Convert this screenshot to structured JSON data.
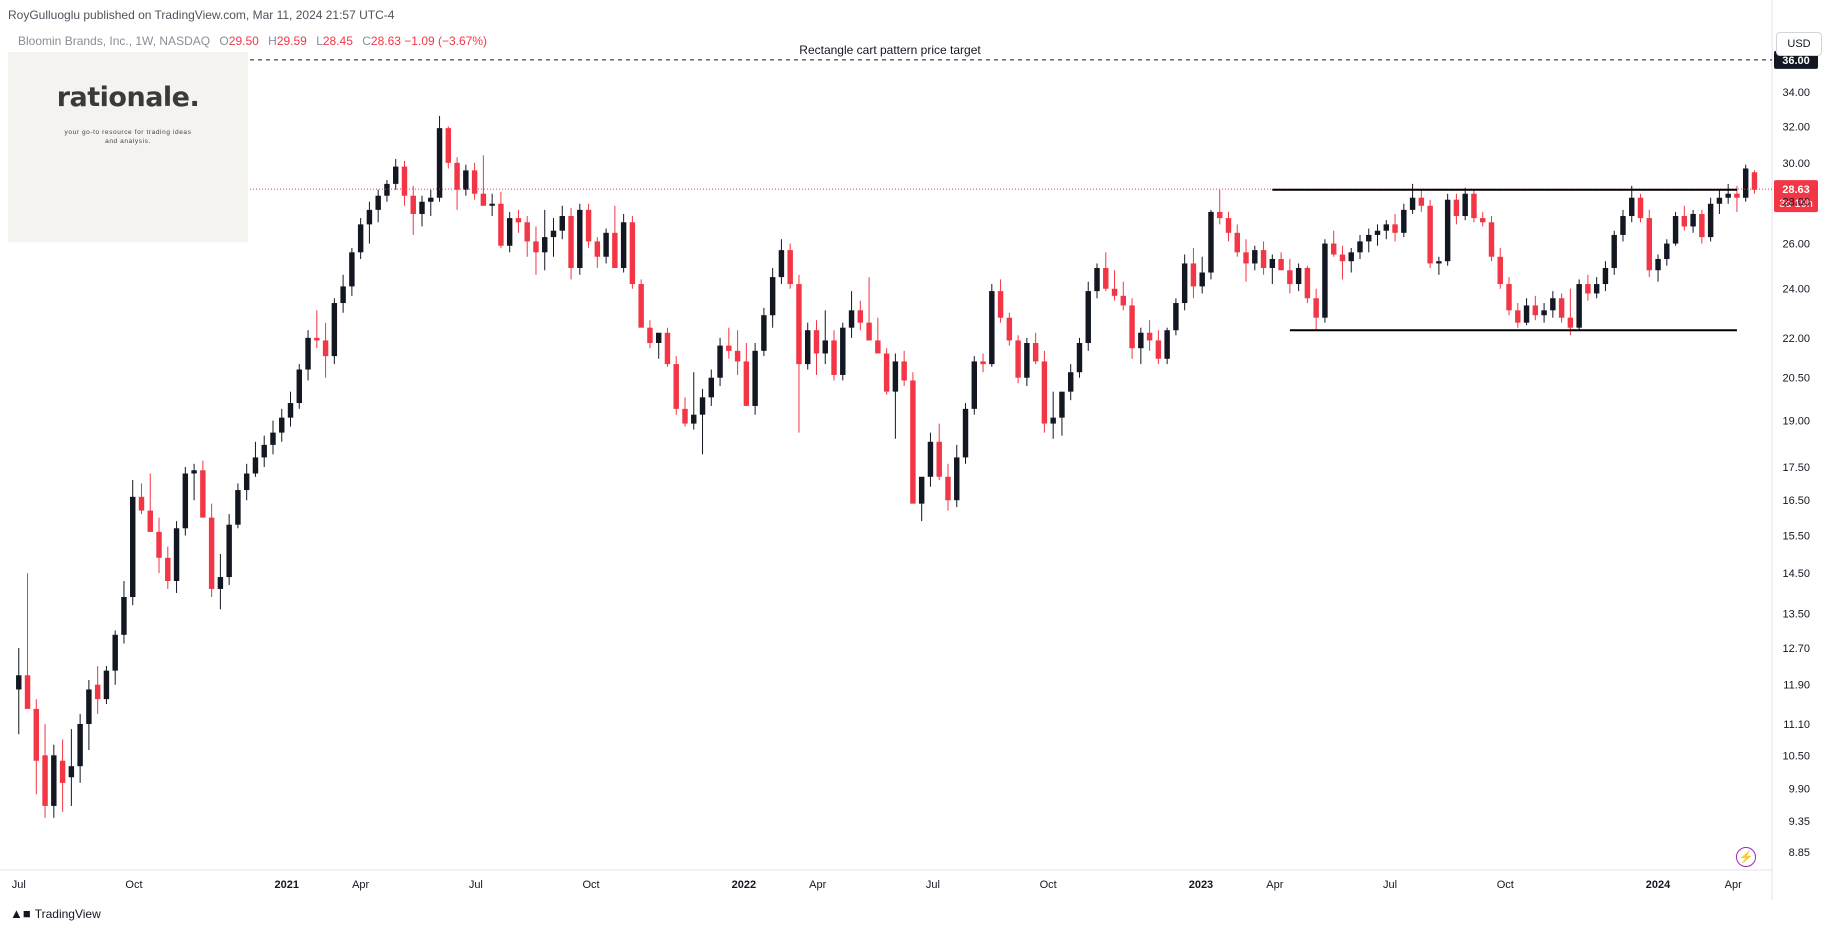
{
  "header": {
    "publisher": "RoyGulluoglu published on TradingView.com, Mar 11, 2024 21:57 UTC-4",
    "symbol": "Bloomin Brands, Inc., 1W, NASDAQ",
    "ohlc": {
      "open_label": "O",
      "open": "29.50",
      "high_label": "H",
      "high": "29.59",
      "low_label": "L",
      "low": "28.45",
      "close_label": "C",
      "close": "28.63",
      "change": "−1.09 (−3.67%)"
    }
  },
  "logo": {
    "name": "rationale.",
    "tagline": "your go-to resource for trading ideas and analysis."
  },
  "currency": "USD",
  "footer": {
    "brand": "TradingView"
  },
  "icons": {
    "footer_logo": "tradingview-logo-icon",
    "bolt": "lightning-icon"
  },
  "colors": {
    "up": "#131722",
    "down": "#f23645",
    "price_line": "#f23645",
    "target_line": "#131722"
  },
  "chart_data": {
    "type": "candlestick",
    "title": "Bloomin Brands, Inc., 1W, NASDAQ",
    "y_scale": "log",
    "ylim": [
      8.6,
      38.5
    ],
    "y_ticks": [
      "8.85",
      "9.35",
      "9.90",
      "10.50",
      "11.10",
      "11.90",
      "12.70",
      "13.50",
      "14.50",
      "15.50",
      "16.50",
      "17.50",
      "19.00",
      "20.50",
      "22.00",
      "24.00",
      "26.00",
      "28.00",
      "30.00",
      "32.00",
      "34.00"
    ],
    "x_ticks": [
      "Jul",
      "Oct",
      "2021",
      "Apr",
      "Jul",
      "Oct",
      "2022",
      "Apr",
      "Jul",
      "Oct",
      "2023",
      "Apr",
      "Jul",
      "Oct",
      "2024",
      "Apr"
    ],
    "x_range": [
      "2020-05-25",
      "2024-04-01"
    ],
    "last_price": {
      "value": 28.63,
      "label": "28.63",
      "countdown": "3d 19h"
    },
    "target": {
      "value": 36.0,
      "label": "36.00",
      "annotation": "Rectangle cart pattern price target"
    },
    "rectangle": {
      "resistance": 28.6,
      "support": 22.3,
      "resistance_start": "2023-02-27",
      "support_start": "2023-03-13",
      "end": "2024-03-04"
    },
    "candles_start_date": "2020-06-01",
    "candles_ohlc": [
      [
        11.8,
        12.7,
        10.9,
        12.1
      ],
      [
        12.1,
        14.5,
        11.6,
        11.4
      ],
      [
        11.4,
        11.6,
        9.8,
        10.4
      ],
      [
        10.5,
        11.1,
        9.4,
        9.6
      ],
      [
        9.6,
        10.7,
        9.4,
        10.5
      ],
      [
        10.4,
        10.8,
        9.5,
        10.0
      ],
      [
        10.1,
        11.0,
        9.6,
        10.3
      ],
      [
        10.3,
        11.3,
        10.0,
        11.1
      ],
      [
        11.1,
        12.0,
        10.6,
        11.8
      ],
      [
        11.9,
        12.3,
        11.3,
        11.6
      ],
      [
        11.6,
        12.3,
        11.5,
        12.2
      ],
      [
        12.2,
        13.1,
        11.9,
        13.0
      ],
      [
        13.0,
        14.3,
        12.8,
        13.9
      ],
      [
        13.9,
        17.1,
        13.7,
        16.6
      ],
      [
        16.6,
        17.0,
        16.1,
        16.2
      ],
      [
        16.2,
        17.3,
        15.8,
        15.6
      ],
      [
        15.6,
        16.0,
        14.5,
        14.9
      ],
      [
        14.9,
        15.2,
        14.1,
        14.3
      ],
      [
        14.3,
        15.9,
        14.0,
        15.7
      ],
      [
        15.7,
        17.5,
        15.5,
        17.3
      ],
      [
        17.3,
        17.6,
        16.5,
        17.4
      ],
      [
        17.4,
        17.7,
        16.2,
        16.0
      ],
      [
        16.0,
        16.4,
        13.9,
        14.1
      ],
      [
        14.1,
        15.0,
        13.6,
        14.4
      ],
      [
        14.4,
        16.1,
        14.2,
        15.8
      ],
      [
        15.8,
        17.0,
        15.7,
        16.8
      ],
      [
        16.8,
        17.6,
        16.5,
        17.3
      ],
      [
        17.3,
        18.3,
        17.2,
        17.8
      ],
      [
        17.8,
        18.5,
        17.5,
        18.2
      ],
      [
        18.2,
        19.0,
        17.9,
        18.6
      ],
      [
        18.6,
        19.4,
        18.3,
        19.1
      ],
      [
        19.1,
        20.0,
        18.8,
        19.6
      ],
      [
        19.6,
        21.0,
        19.4,
        20.8
      ],
      [
        20.8,
        22.3,
        20.4,
        22.0
      ],
      [
        22.0,
        23.1,
        21.6,
        21.9
      ],
      [
        21.9,
        22.6,
        20.5,
        21.3
      ],
      [
        21.3,
        23.6,
        21.0,
        23.4
      ],
      [
        23.4,
        24.6,
        23.0,
        24.1
      ],
      [
        24.1,
        25.8,
        23.7,
        25.6
      ],
      [
        25.6,
        27.2,
        25.3,
        26.9
      ],
      [
        26.9,
        28.0,
        26.0,
        27.6
      ],
      [
        27.6,
        28.6,
        27.0,
        28.3
      ],
      [
        28.3,
        29.1,
        28.0,
        28.9
      ],
      [
        28.9,
        30.2,
        28.6,
        29.8
      ],
      [
        29.8,
        30.1,
        27.8,
        28.3
      ],
      [
        28.3,
        28.8,
        26.4,
        27.4
      ],
      [
        27.4,
        28.3,
        26.8,
        28.0
      ],
      [
        28.0,
        28.6,
        27.3,
        28.2
      ],
      [
        28.2,
        32.6,
        28.0,
        31.9
      ],
      [
        31.9,
        32.0,
        29.7,
        30.0
      ],
      [
        30.0,
        30.3,
        27.6,
        28.6
      ],
      [
        28.6,
        29.9,
        28.3,
        29.6
      ],
      [
        29.6,
        30.0,
        28.1,
        28.4
      ],
      [
        28.4,
        30.4,
        28.0,
        27.8
      ],
      [
        27.8,
        28.4,
        27.3,
        27.9
      ],
      [
        27.9,
        28.5,
        25.8,
        25.9
      ],
      [
        25.9,
        27.5,
        25.6,
        27.2
      ],
      [
        27.2,
        27.6,
        26.5,
        27.0
      ],
      [
        27.0,
        27.3,
        25.4,
        26.1
      ],
      [
        26.1,
        26.8,
        24.6,
        25.6
      ],
      [
        25.6,
        27.6,
        24.8,
        26.3
      ],
      [
        26.3,
        27.2,
        25.4,
        26.6
      ],
      [
        26.6,
        27.8,
        26.2,
        27.3
      ],
      [
        27.3,
        27.7,
        24.4,
        24.9
      ],
      [
        24.9,
        27.9,
        24.6,
        27.6
      ],
      [
        27.6,
        27.9,
        25.8,
        26.1
      ],
      [
        26.1,
        26.3,
        24.9,
        25.4
      ],
      [
        25.4,
        26.7,
        25.1,
        26.5
      ],
      [
        26.5,
        27.8,
        25.8,
        24.9
      ],
      [
        24.9,
        27.4,
        24.7,
        27.0
      ],
      [
        27.0,
        27.3,
        24.0,
        24.2
      ],
      [
        24.2,
        24.4,
        23.1,
        22.4
      ],
      [
        22.4,
        22.7,
        21.6,
        21.8
      ],
      [
        21.8,
        22.1,
        21.2,
        22.2
      ],
      [
        22.2,
        22.4,
        20.9,
        21.0
      ],
      [
        21.0,
        21.3,
        19.2,
        19.4
      ],
      [
        19.4,
        19.8,
        18.8,
        18.9
      ],
      [
        18.9,
        20.7,
        18.7,
        19.2
      ],
      [
        19.2,
        20.1,
        17.9,
        19.8
      ],
      [
        19.8,
        20.8,
        19.5,
        20.5
      ],
      [
        20.5,
        22.0,
        20.2,
        21.7
      ],
      [
        21.7,
        22.4,
        21.2,
        21.5
      ],
      [
        21.5,
        22.3,
        20.6,
        21.1
      ],
      [
        21.1,
        21.8,
        19.6,
        19.5
      ],
      [
        19.5,
        21.8,
        19.2,
        21.5
      ],
      [
        21.5,
        23.2,
        21.3,
        22.9
      ],
      [
        22.9,
        24.9,
        22.4,
        24.5
      ],
      [
        24.5,
        26.2,
        24.2,
        25.7
      ],
      [
        25.7,
        26.0,
        24.0,
        24.2
      ],
      [
        24.2,
        24.6,
        18.6,
        21.0
      ],
      [
        21.0,
        22.6,
        20.8,
        22.3
      ],
      [
        22.3,
        22.7,
        20.6,
        21.4
      ],
      [
        21.4,
        23.1,
        21.0,
        21.9
      ],
      [
        21.9,
        22.3,
        20.4,
        20.6
      ],
      [
        20.6,
        22.6,
        20.4,
        22.4
      ],
      [
        22.4,
        23.9,
        22.0,
        23.1
      ],
      [
        23.1,
        23.5,
        22.3,
        22.6
      ],
      [
        22.6,
        24.5,
        22.0,
        21.9
      ],
      [
        21.9,
        22.8,
        21.5,
        21.4
      ],
      [
        21.4,
        21.6,
        19.9,
        20.0
      ],
      [
        20.0,
        21.4,
        18.4,
        21.1
      ],
      [
        21.1,
        21.5,
        20.2,
        20.4
      ],
      [
        20.4,
        20.7,
        16.7,
        16.4
      ],
      [
        16.4,
        16.8,
        15.9,
        17.2
      ],
      [
        17.2,
        18.6,
        16.9,
        18.3
      ],
      [
        18.3,
        18.9,
        17.1,
        17.2
      ],
      [
        17.2,
        17.6,
        16.2,
        16.5
      ],
      [
        16.5,
        18.2,
        16.3,
        17.8
      ],
      [
        17.8,
        19.6,
        17.6,
        19.4
      ],
      [
        19.4,
        21.3,
        19.2,
        21.1
      ],
      [
        21.1,
        21.4,
        20.7,
        21.0
      ],
      [
        21.0,
        24.2,
        20.9,
        23.9
      ],
      [
        23.9,
        24.4,
        22.6,
        22.8
      ],
      [
        22.8,
        23.0,
        21.7,
        21.9
      ],
      [
        21.9,
        22.1,
        20.3,
        20.5
      ],
      [
        20.5,
        22.0,
        20.2,
        21.8
      ],
      [
        21.8,
        22.2,
        21.0,
        21.1
      ],
      [
        21.1,
        21.5,
        18.6,
        18.9
      ],
      [
        18.9,
        20.0,
        18.4,
        19.1
      ],
      [
        19.1,
        19.3,
        18.5,
        20.0
      ],
      [
        20.0,
        21.0,
        19.7,
        20.7
      ],
      [
        20.7,
        22.0,
        20.5,
        21.8
      ],
      [
        21.8,
        24.3,
        21.5,
        23.9
      ],
      [
        23.9,
        25.1,
        23.6,
        24.9
      ],
      [
        24.9,
        25.6,
        23.9,
        24.0
      ],
      [
        24.0,
        24.8,
        23.5,
        23.7
      ],
      [
        23.7,
        24.3,
        23.1,
        23.3
      ],
      [
        23.3,
        23.6,
        21.2,
        21.6
      ],
      [
        21.6,
        22.4,
        21.0,
        22.2
      ],
      [
        22.2,
        22.7,
        21.5,
        21.9
      ],
      [
        21.9,
        22.3,
        21.0,
        21.2
      ],
      [
        21.2,
        22.4,
        21.0,
        22.3
      ],
      [
        22.3,
        23.6,
        22.1,
        23.4
      ],
      [
        23.4,
        25.5,
        23.1,
        25.1
      ],
      [
        25.1,
        25.8,
        23.6,
        24.1
      ],
      [
        24.1,
        25.4,
        23.8,
        24.7
      ],
      [
        24.7,
        27.6,
        24.4,
        27.5
      ],
      [
        27.5,
        28.6,
        26.9,
        27.2
      ],
      [
        27.2,
        27.5,
        26.1,
        26.5
      ],
      [
        26.5,
        26.9,
        25.4,
        25.6
      ],
      [
        25.6,
        26.2,
        24.3,
        25.1
      ],
      [
        25.1,
        25.9,
        24.8,
        25.7
      ],
      [
        25.7,
        26.1,
        24.6,
        24.9
      ],
      [
        24.9,
        25.5,
        24.2,
        25.3
      ],
      [
        25.3,
        25.6,
        24.8,
        24.8
      ],
      [
        24.8,
        25.3,
        23.8,
        24.2
      ],
      [
        24.2,
        25.1,
        23.9,
        24.9
      ],
      [
        24.9,
        25.0,
        23.4,
        23.6
      ],
      [
        23.6,
        24.0,
        22.3,
        22.8
      ],
      [
        22.8,
        26.2,
        22.6,
        26.0
      ],
      [
        26.0,
        26.6,
        25.4,
        25.5
      ],
      [
        25.5,
        25.9,
        24.4,
        25.2
      ],
      [
        25.2,
        25.8,
        24.7,
        25.6
      ],
      [
        25.6,
        26.4,
        25.3,
        26.1
      ],
      [
        26.1,
        26.7,
        25.6,
        26.4
      ],
      [
        26.4,
        26.9,
        25.9,
        26.6
      ],
      [
        26.6,
        27.1,
        26.2,
        26.9
      ],
      [
        26.9,
        27.4,
        26.1,
        26.5
      ],
      [
        26.5,
        27.9,
        26.3,
        27.6
      ],
      [
        27.6,
        28.9,
        27.4,
        28.2
      ],
      [
        28.2,
        28.6,
        27.5,
        27.8
      ],
      [
        27.8,
        28.1,
        24.9,
        25.1
      ],
      [
        25.1,
        25.4,
        24.6,
        25.2
      ],
      [
        25.2,
        28.4,
        25.0,
        28.1
      ],
      [
        28.1,
        28.4,
        26.9,
        27.3
      ],
      [
        27.3,
        28.7,
        27.1,
        28.4
      ],
      [
        28.4,
        28.6,
        27.0,
        27.2
      ],
      [
        27.2,
        27.5,
        26.8,
        27.0
      ],
      [
        27.0,
        27.3,
        25.2,
        25.4
      ],
      [
        25.4,
        25.8,
        24.0,
        24.2
      ],
      [
        24.2,
        24.5,
        22.9,
        23.1
      ],
      [
        23.1,
        23.4,
        22.4,
        22.6
      ],
      [
        22.6,
        23.6,
        22.5,
        23.3
      ],
      [
        23.3,
        23.7,
        22.7,
        22.9
      ],
      [
        22.9,
        23.4,
        22.6,
        23.1
      ],
      [
        23.1,
        23.9,
        22.8,
        23.6
      ],
      [
        23.6,
        23.8,
        22.6,
        22.8
      ],
      [
        22.8,
        24.0,
        22.1,
        22.4
      ],
      [
        22.4,
        24.4,
        22.3,
        24.2
      ],
      [
        24.2,
        24.6,
        23.5,
        23.8
      ],
      [
        23.8,
        24.5,
        23.6,
        24.2
      ],
      [
        24.2,
        25.2,
        23.9,
        24.9
      ],
      [
        24.9,
        26.6,
        24.6,
        26.4
      ],
      [
        26.4,
        27.6,
        26.1,
        27.3
      ],
      [
        27.3,
        28.8,
        27.0,
        28.2
      ],
      [
        28.2,
        28.4,
        27.0,
        27.2
      ],
      [
        27.2,
        27.6,
        24.5,
        24.8
      ],
      [
        24.8,
        25.5,
        24.3,
        25.3
      ],
      [
        25.3,
        26.2,
        25.0,
        26.0
      ],
      [
        26.0,
        27.5,
        25.9,
        27.3
      ],
      [
        27.3,
        27.8,
        26.6,
        26.8
      ],
      [
        26.8,
        27.6,
        26.5,
        27.4
      ],
      [
        27.4,
        27.6,
        26.0,
        26.3
      ],
      [
        26.3,
        28.2,
        26.1,
        27.9
      ],
      [
        27.9,
        28.6,
        27.4,
        28.2
      ],
      [
        28.2,
        28.9,
        27.9,
        28.4
      ],
      [
        28.4,
        28.8,
        27.5,
        28.2
      ],
      [
        28.2,
        29.9,
        28.0,
        29.7
      ],
      [
        29.5,
        29.6,
        28.4,
        28.6
      ]
    ]
  }
}
